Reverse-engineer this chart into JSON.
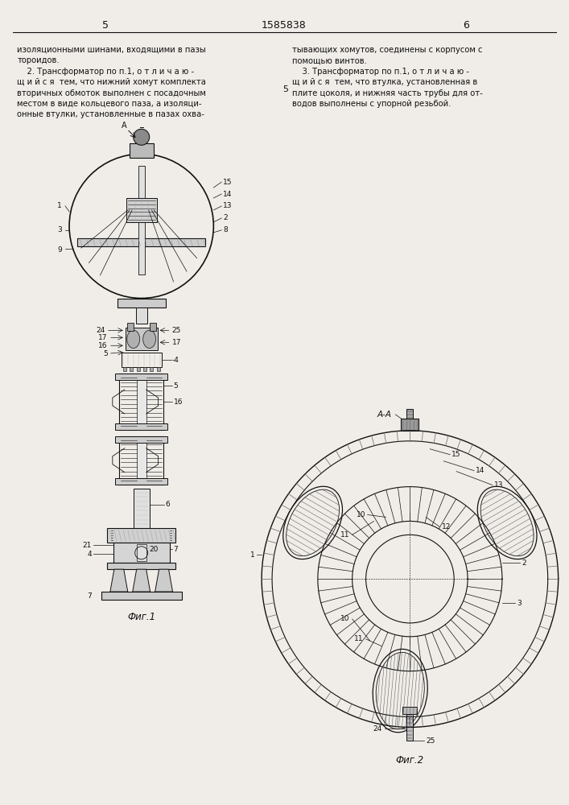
{
  "page_width": 7.07,
  "page_height": 10.0,
  "bg_color": "#f0ede8",
  "text_color": "#111111",
  "header_number_left": "5",
  "header_patent": "1585838",
  "header_number_right": "6",
  "fig1_label": "Фиг.1",
  "fig2_label": "Фиг.2",
  "left_col_lines": [
    "изоляционными шинами, входящими в пазы",
    "тороидов.",
    "    2. Трансформатор по п.1, о т л и ч а ю -",
    "щ и й с я  тем, что нижний хомут комплекта",
    "вторичных обмоток выполнен с посадочным",
    "местом в виде кольцевого паза, а изоляци-",
    "онные втулки, установленные в пазах охва-"
  ],
  "right_col_lines": [
    "тывающих хомутов, соединены с корпусом с",
    "помощью винтов.",
    "    3. Трансформатор по п.1, о т л и ч а ю -",
    "щ и й с я  тем, что втулка, установленная в",
    "плите цоколя, и нижняя часть трубы для от-",
    "водов выполнены с упорной резьбой."
  ]
}
